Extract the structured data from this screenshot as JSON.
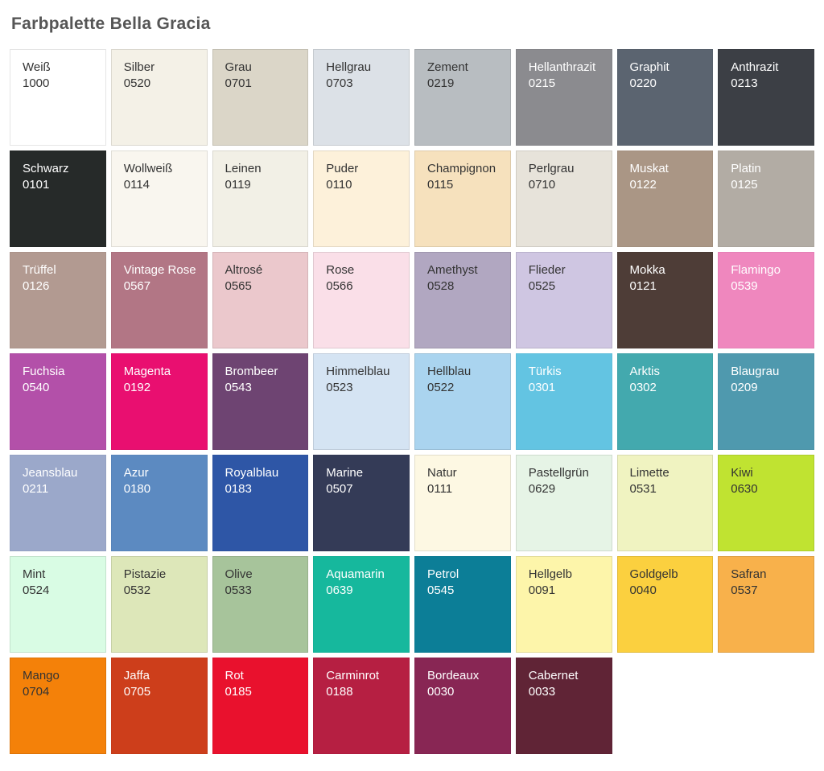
{
  "page": {
    "title": "Farbpalette Bella Gracia"
  },
  "palette": {
    "columns": 8,
    "text_colors": {
      "dark": "#333333",
      "light": "#ffffff"
    },
    "swatches": [
      {
        "name": "Weiß",
        "code": "1000",
        "color": "#ffffff",
        "fg": "dark"
      },
      {
        "name": "Silber",
        "code": "0520",
        "color": "#f4f1e7",
        "fg": "dark"
      },
      {
        "name": "Grau",
        "code": "0701",
        "color": "#dbd6c8",
        "fg": "dark"
      },
      {
        "name": "Hellgrau",
        "code": "0703",
        "color": "#dce1e7",
        "fg": "dark"
      },
      {
        "name": "Zement",
        "code": "0219",
        "color": "#b8bdc1",
        "fg": "dark"
      },
      {
        "name": "Hellanthrazit",
        "code": "0215",
        "color": "#8b8b8f",
        "fg": "light"
      },
      {
        "name": "Graphit",
        "code": "0220",
        "color": "#5b6470",
        "fg": "light"
      },
      {
        "name": "Anthrazit",
        "code": "0213",
        "color": "#3c3f45",
        "fg": "light"
      },
      {
        "name": "Schwarz",
        "code": "0101",
        "color": "#262a29",
        "fg": "light"
      },
      {
        "name": "Wollweiß",
        "code": "0114",
        "color": "#f9f6ef",
        "fg": "dark"
      },
      {
        "name": "Leinen",
        "code": "0119",
        "color": "#f2f0e6",
        "fg": "dark"
      },
      {
        "name": "Puder",
        "code": "0110",
        "color": "#fdf1da",
        "fg": "dark"
      },
      {
        "name": "Champignon",
        "code": "0115",
        "color": "#f6e1bd",
        "fg": "dark"
      },
      {
        "name": "Perlgrau",
        "code": "0710",
        "color": "#e7e3da",
        "fg": "dark"
      },
      {
        "name": "Muskat",
        "code": "0122",
        "color": "#aa9685",
        "fg": "light"
      },
      {
        "name": "Platin",
        "code": "0125",
        "color": "#b2aca4",
        "fg": "light"
      },
      {
        "name": "Trüffel",
        "code": "0126",
        "color": "#b29a91",
        "fg": "light"
      },
      {
        "name": "Vintage Rose",
        "code": "0567",
        "color": "#b27685",
        "fg": "light"
      },
      {
        "name": "Altrosé",
        "code": "0565",
        "color": "#ebc8cc",
        "fg": "dark"
      },
      {
        "name": "Rose",
        "code": "0566",
        "color": "#fadfe8",
        "fg": "dark"
      },
      {
        "name": "Amethyst",
        "code": "0528",
        "color": "#b1a7c1",
        "fg": "dark"
      },
      {
        "name": "Flieder",
        "code": "0525",
        "color": "#cfc6e2",
        "fg": "dark"
      },
      {
        "name": "Mokka",
        "code": "0121",
        "color": "#4e3d37",
        "fg": "light"
      },
      {
        "name": "Flamingo",
        "code": "0539",
        "color": "#ef87be",
        "fg": "light"
      },
      {
        "name": "Fuchsia",
        "code": "0540",
        "color": "#b350a9",
        "fg": "light"
      },
      {
        "name": "Magenta",
        "code": "0192",
        "color": "#e90f70",
        "fg": "light"
      },
      {
        "name": "Brombeer",
        "code": "0543",
        "color": "#6e4472",
        "fg": "light"
      },
      {
        "name": "Himmelblau",
        "code": "0523",
        "color": "#d5e4f3",
        "fg": "dark"
      },
      {
        "name": "Hellblau",
        "code": "0522",
        "color": "#aad4ef",
        "fg": "dark"
      },
      {
        "name": "Türkis",
        "code": "0301",
        "color": "#63c4e2",
        "fg": "light"
      },
      {
        "name": "Arktis",
        "code": "0302",
        "color": "#43a9ae",
        "fg": "light"
      },
      {
        "name": "Blaugrau",
        "code": "0209",
        "color": "#4f99ae",
        "fg": "light"
      },
      {
        "name": "Jeansblau",
        "code": "0211",
        "color": "#9ba8ca",
        "fg": "light"
      },
      {
        "name": "Azur",
        "code": "0180",
        "color": "#5c8ac1",
        "fg": "light"
      },
      {
        "name": "Royalblau",
        "code": "0183",
        "color": "#2e56a6",
        "fg": "light"
      },
      {
        "name": "Marine",
        "code": "0507",
        "color": "#343b57",
        "fg": "light"
      },
      {
        "name": "Natur",
        "code": "0111",
        "color": "#fdf8e3",
        "fg": "dark"
      },
      {
        "name": "Pastellgrün",
        "code": "0629",
        "color": "#e6f4e6",
        "fg": "dark"
      },
      {
        "name": "Limette",
        "code": "0531",
        "color": "#f0f3c1",
        "fg": "dark"
      },
      {
        "name": "Kiwi",
        "code": "0630",
        "color": "#c0e331",
        "fg": "dark"
      },
      {
        "name": "Mint",
        "code": "0524",
        "color": "#d9fce4",
        "fg": "dark"
      },
      {
        "name": "Pistazie",
        "code": "0532",
        "color": "#dde7b9",
        "fg": "dark"
      },
      {
        "name": "Olive",
        "code": "0533",
        "color": "#a7c49b",
        "fg": "dark"
      },
      {
        "name": "Aquamarin",
        "code": "0639",
        "color": "#16b89d",
        "fg": "light"
      },
      {
        "name": "Petrol",
        "code": "0545",
        "color": "#0c7e97",
        "fg": "light"
      },
      {
        "name": "Hellgelb",
        "code": "0091",
        "color": "#fdf5aa",
        "fg": "dark"
      },
      {
        "name": "Goldgelb",
        "code": "0040",
        "color": "#fbd03f",
        "fg": "dark"
      },
      {
        "name": "Safran",
        "code": "0537",
        "color": "#f8b14b",
        "fg": "dark"
      },
      {
        "name": "Mango",
        "code": "0704",
        "color": "#f48109",
        "fg": "dark"
      },
      {
        "name": "Jaffa",
        "code": "0705",
        "color": "#cd3e1b",
        "fg": "light"
      },
      {
        "name": "Rot",
        "code": "0185",
        "color": "#e9112d",
        "fg": "light"
      },
      {
        "name": "Carminrot",
        "code": "0188",
        "color": "#b61f42",
        "fg": "light"
      },
      {
        "name": "Bordeaux",
        "code": "0030",
        "color": "#882654",
        "fg": "light"
      },
      {
        "name": "Cabernet",
        "code": "0033",
        "color": "#602436",
        "fg": "light"
      }
    ]
  }
}
